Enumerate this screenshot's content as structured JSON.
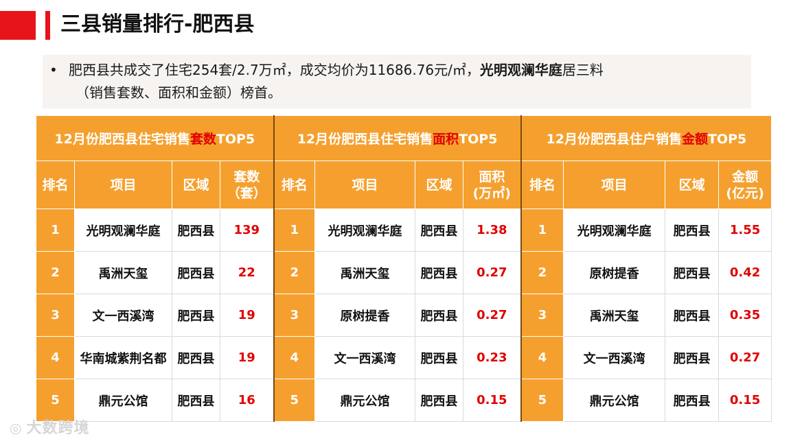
{
  "page": {
    "title": "三县销量排行-肥西县",
    "summary": {
      "bullet": "•",
      "line1_pre": "肥西县共成交了住宅254套/2.7万㎡，成交均价为11686.76元/㎡，",
      "line1_bold": "光明观澜华庭",
      "line1_post": "居三料",
      "line2": "（销售套数、面积和金额）榜首。"
    }
  },
  "tables": [
    {
      "header_pre": "12月份肥西县住宅销售",
      "header_hl": "套数",
      "header_post": "TOP5",
      "columns": [
        "排名",
        "项目",
        "区域",
        "套数（套）"
      ],
      "col_value_line1": "套数",
      "col_value_line2": "（套）",
      "rows": [
        {
          "rank": "1",
          "project": "光明观澜华庭",
          "region": "肥西县",
          "value": "139"
        },
        {
          "rank": "2",
          "project": "禹洲天玺",
          "region": "肥西县",
          "value": "22"
        },
        {
          "rank": "3",
          "project": "文一西溪湾",
          "region": "肥西县",
          "value": "19"
        },
        {
          "rank": "4",
          "project": "华南城紫荆名都",
          "region": "肥西县",
          "value": "19"
        },
        {
          "rank": "5",
          "project": "鼎元公馆",
          "region": "肥西县",
          "value": "16"
        }
      ]
    },
    {
      "header_pre": "12月份肥西县住宅销售",
      "header_hl": "面积",
      "header_post": "TOP5",
      "columns": [
        "排名",
        "项目",
        "区域",
        "面积(万㎡)"
      ],
      "col_value_line1": "面积",
      "col_value_line2": "(万㎡)",
      "rows": [
        {
          "rank": "1",
          "project": "光明观澜华庭",
          "region": "肥西县",
          "value": "1.38"
        },
        {
          "rank": "2",
          "project": "禹洲天玺",
          "region": "肥西县",
          "value": "0.27"
        },
        {
          "rank": "3",
          "project": "原树提香",
          "region": "肥西县",
          "value": "0.27"
        },
        {
          "rank": "4",
          "project": "文一西溪湾",
          "region": "肥西县",
          "value": "0.23"
        },
        {
          "rank": "5",
          "project": "鼎元公馆",
          "region": "肥西县",
          "value": "0.15"
        }
      ]
    },
    {
      "header_pre": "12月份肥西县住户销售",
      "header_hl": "金额",
      "header_post": "TOP5",
      "columns": [
        "排名",
        "项目",
        "区域",
        "金额(亿元)"
      ],
      "col_value_line1": "金额",
      "col_value_line2": "(亿元)",
      "rows": [
        {
          "rank": "1",
          "project": "光明观澜华庭",
          "region": "肥西县",
          "value": "1.55"
        },
        {
          "rank": "2",
          "project": "原树提香",
          "region": "肥西县",
          "value": "0.42"
        },
        {
          "rank": "3",
          "project": "禹洲天玺",
          "region": "肥西县",
          "value": "0.35"
        },
        {
          "rank": "4",
          "project": "文一西溪湾",
          "region": "肥西县",
          "value": "0.27"
        },
        {
          "rank": "5",
          "project": "鼎元公馆",
          "region": "肥西县",
          "value": "0.15"
        }
      ]
    }
  ],
  "watermark": {
    "icon": "weibo-icon",
    "text": "大数跨境"
  },
  "colors": {
    "accent_red": "#e8141b",
    "header_orange": "#f5a02e",
    "value_red": "#e00000"
  }
}
